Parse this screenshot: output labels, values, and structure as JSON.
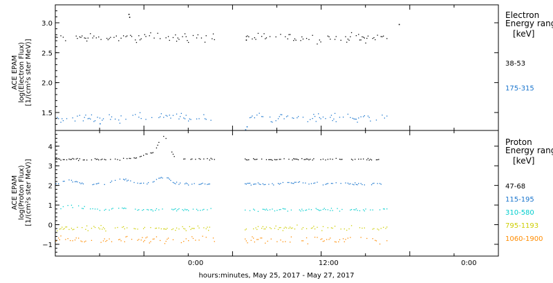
{
  "x_axis": {
    "label": "hours:minutes, May 25, 2017 - May 27, 2017",
    "tick_labels": [
      "0:00",
      "12:00",
      "0:00"
    ]
  },
  "chart_data": [
    {
      "type": "scatter",
      "panel": "electron",
      "ylabel": [
        "ACE EPAM",
        "log(Electron Flux)",
        "[1/(cm²s ster MeV)]"
      ],
      "legend_title": [
        "Electron",
        "Energy range",
        "[keV]"
      ],
      "xlim_hours": [
        0,
        60
      ],
      "ylim": [
        1.2,
        3.3
      ],
      "y_ticks": [
        1.5,
        2.0,
        2.5,
        3.0
      ],
      "y_tick_labels": [
        "1.5",
        "2.0",
        "2.5",
        "3.0"
      ],
      "data_gap_hours": [
        21.5,
        25.5
      ],
      "series": [
        {
          "name": "38-53",
          "color": "#000000",
          "mean": 2.76,
          "spread": 0.05,
          "spikes": [
            [
              9.9,
              3.15
            ],
            [
              10.0,
              3.1
            ],
            [
              46.5,
              2.98
            ],
            [
              25.8,
              2.72
            ]
          ]
        },
        {
          "name": "175-315",
          "color": "#1874cd",
          "mean": 1.42,
          "spread": 0.045,
          "spikes": [
            [
              25.7,
              1.22
            ],
            [
              25.9,
              1.27
            ],
            [
              6.0,
              1.32
            ]
          ]
        }
      ]
    },
    {
      "type": "scatter",
      "panel": "proton",
      "ylabel": [
        "ACE EPAM",
        "log(Proton Flux)",
        "[1/(cm²s ster MeV)]"
      ],
      "legend_title": [
        "Proton",
        "Energy range",
        "[keV]"
      ],
      "xlim_hours": [
        0,
        60
      ],
      "ylim": [
        -1.6,
        4.8
      ],
      "y_ticks": [
        -1,
        0,
        1,
        2,
        3,
        4
      ],
      "y_tick_labels": [
        "−1",
        "0",
        "1",
        "2",
        "3",
        "4"
      ],
      "data_gap_hours": [
        21.5,
        25.5
      ],
      "series": [
        {
          "name": "47-68",
          "color": "#000000",
          "mean": 3.35,
          "spread": 0.03,
          "bumps": [
            [
              12.5,
              0.25,
              1.5
            ],
            [
              14.6,
              1.15,
              1.0
            ]
          ]
        },
        {
          "name": "115-195",
          "color": "#1874cd",
          "mean": 2.1,
          "spread": 0.04,
          "bumps": [
            [
              2.0,
              0.15,
              1.5
            ],
            [
              9.0,
              0.25,
              1.6
            ],
            [
              14.5,
              0.35,
              1.2
            ],
            [
              33.0,
              0.08,
              2.0
            ]
          ]
        },
        {
          "name": "310-580",
          "color": "#00cdcd",
          "mean": 0.78,
          "spread": 0.05,
          "bumps": [
            [
              2.0,
              0.2,
              2.0
            ],
            [
              9.0,
              0.1,
              2.0
            ]
          ]
        },
        {
          "name": "795-1193",
          "color": "#cdcd00",
          "mean": -0.15,
          "spread": 0.07,
          "bumps": []
        },
        {
          "name": "1060-1900",
          "color": "#ff8c00",
          "mean": -0.75,
          "spread": 0.12,
          "bumps": []
        }
      ]
    }
  ]
}
